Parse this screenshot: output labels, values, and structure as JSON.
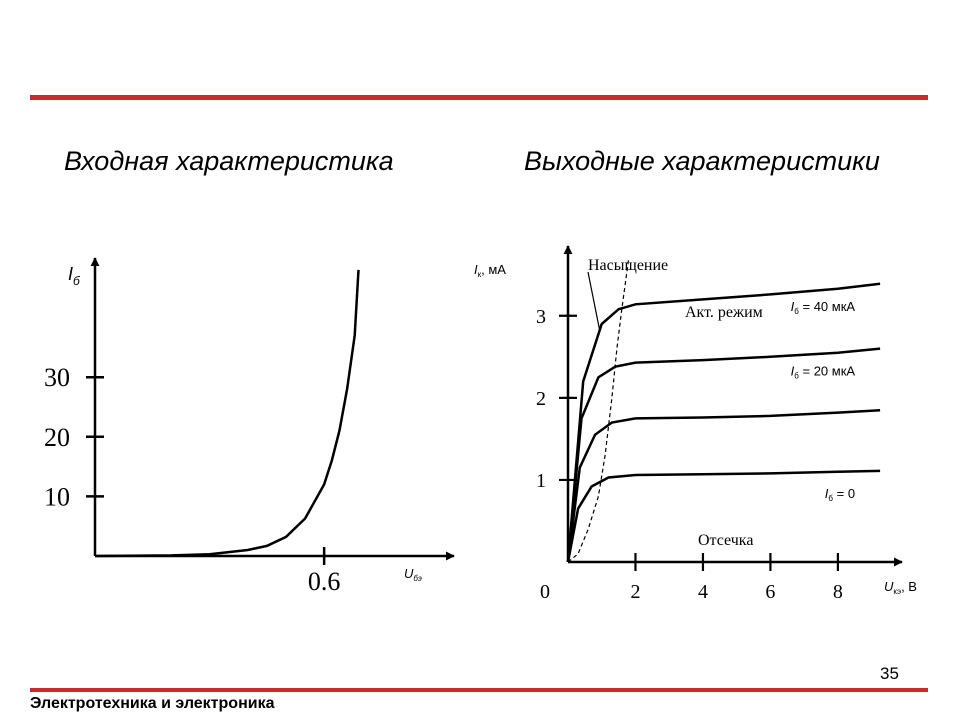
{
  "slide": {
    "page_number": "35",
    "footer": "Электротехника и электроника",
    "accent_color": "#cc2a2a"
  },
  "chart_data": [
    {
      "type": "line",
      "title": "Входная характеристика",
      "xlabel": {
        "main": "U",
        "sub": "бэ"
      },
      "ylabel": {
        "main": "I",
        "sub": "б"
      },
      "xticks": [
        {
          "value": 0.6,
          "label": "0.6"
        }
      ],
      "yticks": [
        {
          "value": 10,
          "label": "10"
        },
        {
          "value": 20,
          "label": "20"
        },
        {
          "value": 30,
          "label": "30"
        }
      ],
      "xlim": [
        0,
        0.94
      ],
      "ylim": [
        0,
        50
      ],
      "series": [
        {
          "x": [
            0,
            0.2,
            0.3,
            0.4,
            0.45,
            0.5,
            0.55,
            0.6,
            0.62,
            0.64,
            0.66,
            0.68,
            0.69
          ],
          "y": [
            0,
            0.1,
            0.3,
            1.0,
            1.7,
            3.2,
            6.3,
            12,
            16,
            21,
            28,
            37,
            48
          ]
        }
      ]
    },
    {
      "type": "line",
      "title": "Выходные характеристики",
      "xlabel": {
        "main": "U",
        "sub": "кэ",
        "unit": ", В"
      },
      "ylabel": {
        "main": "I",
        "sub": "к",
        "unit": ", мА"
      },
      "xticks": [
        {
          "value": 2,
          "label": "2"
        },
        {
          "value": 4,
          "label": "4"
        },
        {
          "value": 6,
          "label": "6"
        },
        {
          "value": 8,
          "label": "8"
        }
      ],
      "yticks": [
        {
          "value": 1,
          "label": "1"
        },
        {
          "value": 2,
          "label": "2"
        },
        {
          "value": 3,
          "label": "3"
        }
      ],
      "origin_label": "0",
      "xlim": [
        0,
        9.9
      ],
      "ylim": [
        0,
        3.85
      ],
      "series": [
        {
          "label": "I",
          "label_sub": "б",
          "label_rest": " = 0",
          "x": [
            0,
            0.3,
            0.7,
            1.2,
            2,
            4,
            6,
            8,
            9.25
          ],
          "y": [
            0,
            0.65,
            0.92,
            1.03,
            1.06,
            1.07,
            1.08,
            1.1,
            1.11
          ]
        },
        {
          "x": [
            0,
            0.35,
            0.8,
            1.3,
            2,
            4,
            6,
            8,
            9.25
          ],
          "y": [
            0,
            1.15,
            1.55,
            1.7,
            1.75,
            1.76,
            1.78,
            1.82,
            1.85
          ]
        },
        {
          "label": "I",
          "label_sub": "б",
          "label_rest": " = 20 мкА",
          "x": [
            0,
            0.4,
            0.9,
            1.4,
            2,
            4,
            6,
            8,
            9.25
          ],
          "y": [
            0,
            1.75,
            2.25,
            2.38,
            2.43,
            2.46,
            2.5,
            2.55,
            2.6
          ]
        },
        {
          "label": "I",
          "label_sub": "б",
          "label_rest": " = 40 мкА",
          "x": [
            0,
            0.45,
            1.0,
            1.5,
            2,
            4,
            6,
            8,
            9.25
          ],
          "y": [
            0,
            2.2,
            2.9,
            3.08,
            3.14,
            3.2,
            3.26,
            3.33,
            3.39
          ]
        }
      ],
      "boundary_curve": {
        "style": "dashed",
        "x": [
          0,
          0.3,
          0.6,
          0.9,
          1.1,
          1.3,
          1.45,
          1.6,
          1.7,
          1.8
        ],
        "y": [
          0,
          0.1,
          0.4,
          0.8,
          1.3,
          2.0,
          2.6,
          3.1,
          3.4,
          3.7
        ]
      },
      "annotations": {
        "saturation": "Насыщение",
        "active": "Акт. режим",
        "cutoff": "Отсечка"
      }
    }
  ]
}
